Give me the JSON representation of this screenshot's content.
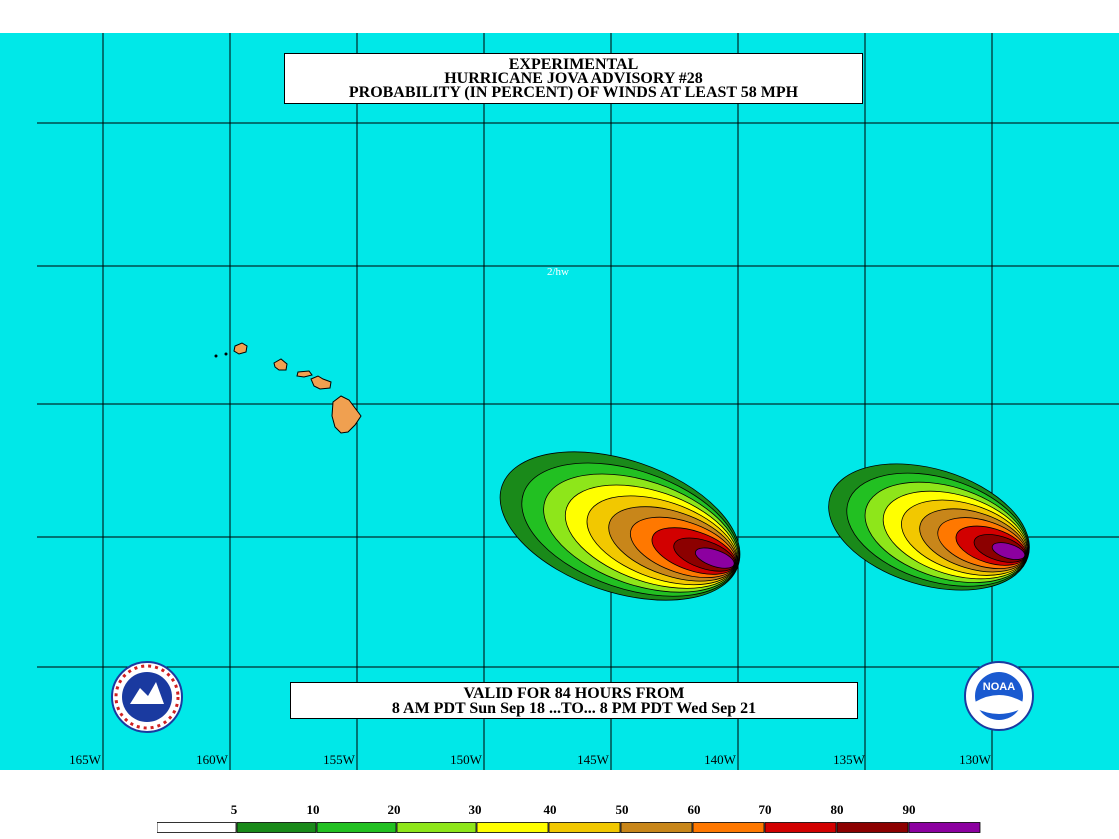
{
  "title": {
    "line1": "EXPERIMENTAL",
    "line2": "HURRICANE JOVA ADVISORY #28",
    "line3": "PROBABILITY (IN PERCENT) OF WINDS AT LEAST 58 MPH"
  },
  "valid": {
    "line1": "VALID FOR 84 HOURS FROM",
    "line2": "8 AM PDT Sun Sep 18 ...TO... 8 PM PDT Wed Sep 21"
  },
  "stamp": "2/hw",
  "longitudes": [
    "165W",
    "160W",
    "155W",
    "150W",
    "145W",
    "140W",
    "135W",
    "130W"
  ],
  "legend": {
    "labels": [
      "5",
      "10",
      "20",
      "30",
      "40",
      "50",
      "60",
      "70",
      "80",
      "90"
    ],
    "colors": [
      "#ffffff",
      "#1a8a1a",
      "#22c022",
      "#8ee61a",
      "#ffff00",
      "#f2c800",
      "#c8861a",
      "#ff7800",
      "#d20000",
      "#8c0000",
      "#8c00a0"
    ]
  },
  "colors": {
    "ocean": "#00e8e8",
    "land": "#f0a050",
    "grid": "#000000"
  },
  "logos": {
    "left": "nws-logo",
    "right": "noaa-logo",
    "right_text": "NOAA"
  }
}
